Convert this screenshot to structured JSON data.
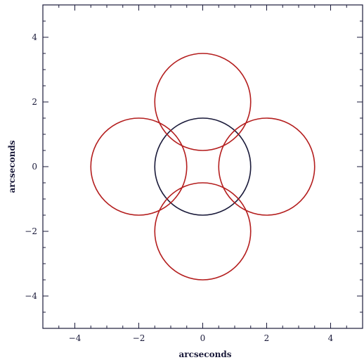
{
  "chart_data": {
    "type": "scatter",
    "title": "",
    "xlabel": "arcseconds",
    "ylabel": "arcseconds",
    "xlim": [
      -5,
      5
    ],
    "ylim": [
      -5,
      5
    ],
    "x_ticks": [
      -4,
      -2,
      0,
      2,
      4
    ],
    "y_ticks": [
      -4,
      -2,
      0,
      2,
      4
    ],
    "x_tick_labels": [
      "−4",
      "−2",
      "0",
      "2",
      "4"
    ],
    "y_tick_labels": [
      "−4",
      "−2",
      "0",
      "2",
      "4"
    ],
    "minor_tick_step": 0.5,
    "grid": false,
    "series": [
      {
        "shape": "circle",
        "color": "#1a1a3a",
        "circles": [
          {
            "cx": 0,
            "cy": 0,
            "r": 1.5
          }
        ]
      },
      {
        "shape": "circle",
        "color": "#b41e1e",
        "circles": [
          {
            "cx": 0,
            "cy": 2,
            "r": 1.5
          },
          {
            "cx": -2,
            "cy": 0,
            "r": 1.5
          },
          {
            "cx": 2,
            "cy": 0,
            "r": 1.5
          },
          {
            "cx": 0,
            "cy": -2,
            "r": 1.5
          }
        ]
      }
    ]
  }
}
